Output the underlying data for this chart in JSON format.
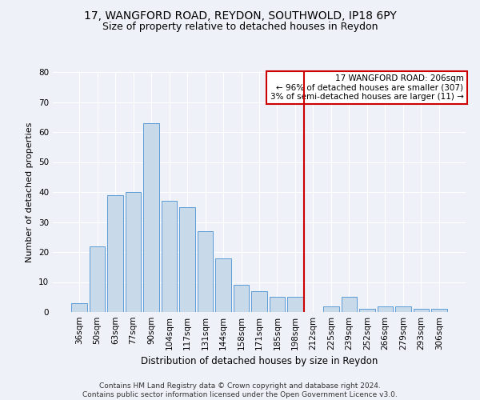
{
  "title1": "17, WANGFORD ROAD, REYDON, SOUTHWOLD, IP18 6PY",
  "title2": "Size of property relative to detached houses in Reydon",
  "xlabel": "Distribution of detached houses by size in Reydon",
  "ylabel": "Number of detached properties",
  "categories": [
    "36sqm",
    "50sqm",
    "63sqm",
    "77sqm",
    "90sqm",
    "104sqm",
    "117sqm",
    "131sqm",
    "144sqm",
    "158sqm",
    "171sqm",
    "185sqm",
    "198sqm",
    "212sqm",
    "225sqm",
    "239sqm",
    "252sqm",
    "266sqm",
    "279sqm",
    "293sqm",
    "306sqm"
  ],
  "values": [
    3,
    22,
    39,
    40,
    63,
    37,
    35,
    27,
    18,
    9,
    7,
    5,
    5,
    0,
    2,
    5,
    1,
    2,
    2,
    1,
    1
  ],
  "bar_color": "#c8daea",
  "bar_edge_color": "#5b9bd5",
  "vline_color": "#cc0000",
  "vline_x": 12.5,
  "annotation_text": "17 WANGFORD ROAD: 206sqm\n← 96% of detached houses are smaller (307)\n3% of semi-detached houses are larger (11) →",
  "annotation_box_color": "#ffffff",
  "annotation_box_edge": "#cc0000",
  "ylim": [
    0,
    80
  ],
  "yticks": [
    0,
    10,
    20,
    30,
    40,
    50,
    60,
    70,
    80
  ],
  "background_color": "#eef2f8",
  "grid_color": "#ffffff",
  "footer": "Contains HM Land Registry data © Crown copyright and database right 2024.\nContains public sector information licensed under the Open Government Licence v3.0.",
  "title1_fontsize": 10,
  "title2_fontsize": 9,
  "xlabel_fontsize": 8.5,
  "ylabel_fontsize": 8,
  "tick_fontsize": 7.5,
  "annotation_fontsize": 7.5,
  "footer_fontsize": 6.5
}
